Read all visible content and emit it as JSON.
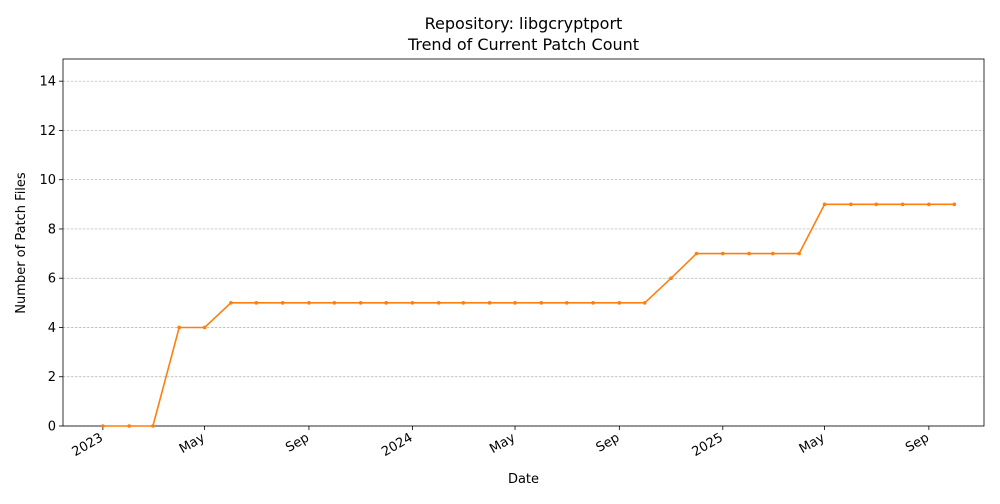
{
  "chart_data": {
    "type": "line",
    "title_line1": "Repository: libgcryptport",
    "title_line2": "Trend of Current Patch Count",
    "xlabel": "Date",
    "ylabel": "Number of Patch Files",
    "ylim": [
      0,
      14.9
    ],
    "xlim": [
      "2022-11-15",
      "2025-11-05"
    ],
    "y_ticks": [
      0,
      2,
      4,
      6,
      8,
      10,
      12,
      14
    ],
    "x_ticks": [
      {
        "date": "2023-01-01",
        "label": "2023"
      },
      {
        "date": "2023-05-01",
        "label": "May"
      },
      {
        "date": "2023-09-01",
        "label": "Sep"
      },
      {
        "date": "2024-01-01",
        "label": "2024"
      },
      {
        "date": "2024-05-01",
        "label": "May"
      },
      {
        "date": "2024-09-01",
        "label": "Sep"
      },
      {
        "date": "2025-01-01",
        "label": "2025"
      },
      {
        "date": "2025-05-01",
        "label": "May"
      },
      {
        "date": "2025-09-01",
        "label": "Sep"
      }
    ],
    "grid": "y-dashed",
    "series_color": "#ff7f0e",
    "series": [
      {
        "x": [
          "2023-01-01",
          "2023-02-01",
          "2023-03-01",
          "2023-04-01",
          "2023-05-01",
          "2023-06-01",
          "2023-07-01",
          "2023-08-01",
          "2023-09-01",
          "2023-10-01",
          "2023-11-01",
          "2023-12-01",
          "2024-01-01",
          "2024-02-01",
          "2024-03-01",
          "2024-04-01",
          "2024-05-01",
          "2024-06-01",
          "2024-07-01",
          "2024-08-01",
          "2024-09-01",
          "2024-10-01",
          "2024-11-01",
          "2024-12-01",
          "2025-01-01",
          "2025-02-01",
          "2025-03-01",
          "2025-04-01",
          "2025-05-01",
          "2025-06-01",
          "2025-07-01",
          "2025-08-01",
          "2025-09-01",
          "2025-10-01"
        ],
        "values": [
          0,
          0,
          0,
          4,
          4,
          5,
          5,
          5,
          5,
          5,
          5,
          5,
          5,
          5,
          5,
          5,
          5,
          5,
          5,
          5,
          5,
          5,
          6,
          7,
          7,
          7,
          7,
          7,
          9,
          9,
          9,
          9,
          9,
          9
        ]
      }
    ]
  }
}
